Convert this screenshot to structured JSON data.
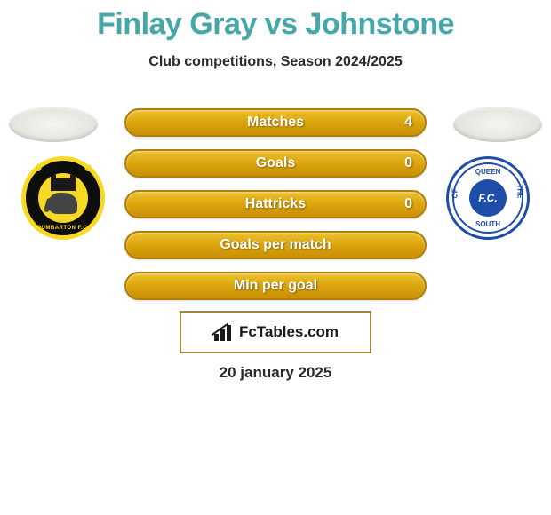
{
  "title": "Finlay Gray vs Johnstone",
  "subtitle": "Club competitions, Season 2024/2025",
  "date": "20 january 2025",
  "logo_text": "FcTables.com",
  "colors": {
    "title_color": "#45a8a8",
    "bar_gradient_top": "#ecc12f",
    "bar_gradient_mid": "#dca50c",
    "bar_gradient_bot": "#c88f06",
    "bar_border": "#b07e0a",
    "logo_border": "#9e8844",
    "text_dark": "#2a2a2a",
    "bar_text": "#ffffff"
  },
  "bars": [
    {
      "label": "Matches",
      "value": "4"
    },
    {
      "label": "Goals",
      "value": "0"
    },
    {
      "label": "Hattricks",
      "value": "0"
    },
    {
      "label": "Goals per match",
      "value": ""
    },
    {
      "label": "Min per goal",
      "value": ""
    }
  ],
  "badge_left": {
    "team": "Dumbarton",
    "ring_text": "DUMBARTON F.C.",
    "letter_left": "D",
    "letter_right": "C",
    "outer_color": "#f7d923",
    "ring_color": "#0d0d0d"
  },
  "badge_right": {
    "team": "Queen of the South",
    "center_text": "F.C.",
    "arc_top": "QUEEN",
    "arc_left": "OF",
    "arc_right": "THE",
    "arc_bottom": "SOUTH",
    "primary_color": "#1e4ea8"
  }
}
